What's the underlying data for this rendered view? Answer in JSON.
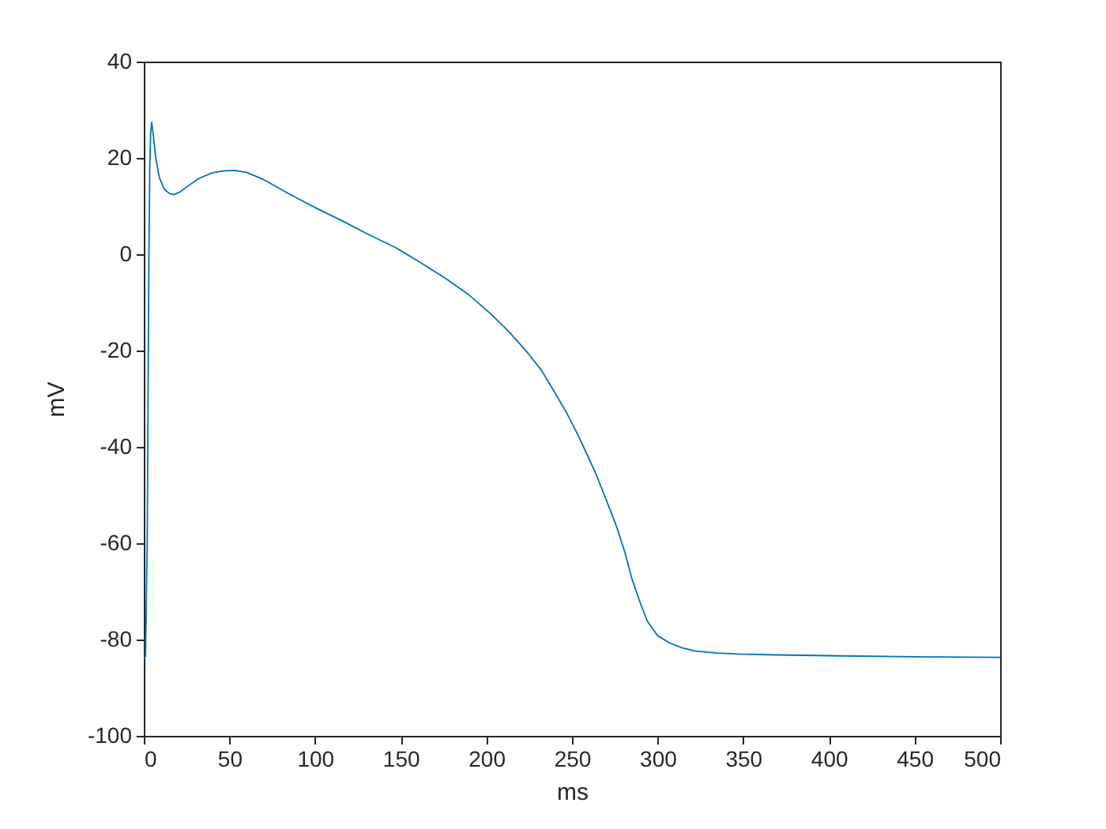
{
  "chart_data": {
    "type": "line",
    "xlabel": "ms",
    "ylabel": "mV",
    "xlim": [
      0,
      500
    ],
    "ylim": [
      -100,
      40
    ],
    "xticks": [
      0,
      50,
      100,
      150,
      200,
      250,
      300,
      350,
      400,
      450,
      500
    ],
    "yticks": [
      -100,
      -80,
      -60,
      -40,
      -20,
      0,
      20,
      40
    ],
    "x": [
      0,
      1,
      2,
      2.5,
      3,
      3.5,
      4,
      4.6,
      5.5,
      7,
      9,
      12,
      15,
      17.5,
      21,
      26,
      32,
      40,
      47,
      53,
      60,
      70,
      85,
      100,
      116,
      130,
      147,
      160,
      177,
      190,
      202,
      213,
      224,
      232,
      239,
      247,
      254,
      260,
      264,
      270,
      276,
      281,
      285,
      290,
      294,
      300,
      307,
      314,
      322,
      335,
      347,
      370,
      408,
      450,
      500
    ],
    "series": [
      {
        "color": "#0072bd",
        "values": [
          -84,
          -83.5,
          -60,
          -30,
          0,
          18,
          25,
          27.4,
          25,
          20,
          16,
          13.5,
          12.6,
          12.4,
          12.9,
          14.2,
          15.7,
          16.9,
          17.3,
          17.4,
          17,
          15.5,
          12.5,
          9.7,
          6.9,
          4.3,
          1.4,
          -1.4,
          -5.2,
          -8.5,
          -12.2,
          -16,
          -20.4,
          -24,
          -28.1,
          -33,
          -37.9,
          -42.5,
          -45.6,
          -51,
          -56.5,
          -62,
          -67.4,
          -72.5,
          -76.2,
          -79.2,
          -80.7,
          -81.7,
          -82.4,
          -82.8,
          -83,
          -83.2,
          -83.4,
          -83.6,
          -83.7
        ]
      }
    ]
  }
}
